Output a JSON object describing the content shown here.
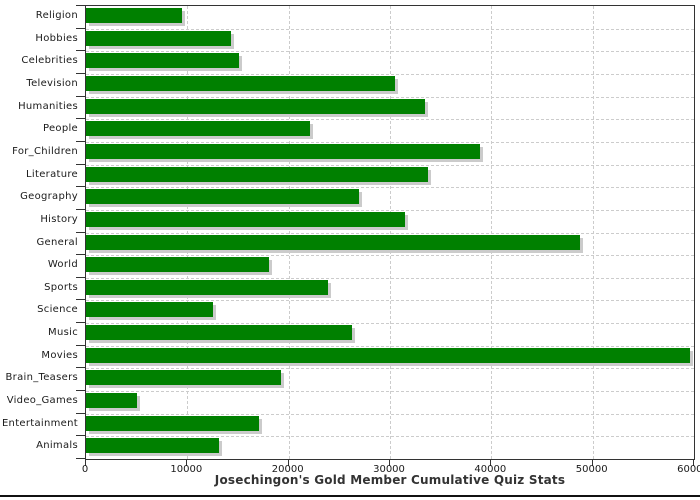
{
  "window": {
    "background_color": "#ffffff",
    "bottom_border_color": "#111111"
  },
  "chart_data": {
    "type": "bar",
    "orientation": "horizontal",
    "title": "Josechingon's Gold Member Cumulative Quiz Stats",
    "xlabel": "",
    "ylabel": "",
    "categories": [
      "Religion",
      "Hobbies",
      "Celebrities",
      "Television",
      "Humanities",
      "People",
      "For_Children",
      "Literature",
      "Geography",
      "History",
      "General",
      "World",
      "Sports",
      "Science",
      "Music",
      "Movies",
      "Brain_Teasers",
      "Video_Games",
      "Entertainment",
      "Animals"
    ],
    "values": [
      9500,
      14300,
      15100,
      30500,
      33400,
      22100,
      38900,
      33700,
      26900,
      31500,
      48700,
      18100,
      23900,
      12500,
      26200,
      59600,
      19200,
      5000,
      17100,
      13100
    ],
    "xlim": [
      0,
      60000
    ],
    "x_ticks": [
      0,
      10000,
      20000,
      30000,
      40000,
      50000,
      60000
    ],
    "x_tick_labels": [
      "0",
      "10000",
      "20000",
      "30000",
      "40000",
      "50000",
      "60000"
    ],
    "grid": "dashed",
    "legend": "none",
    "bar_color": "#008000",
    "bar_shadow_color": "#cbcbcb",
    "grid_color": "#cccccc",
    "axis_color": "#333333",
    "text_color": "#1a1a1a"
  }
}
